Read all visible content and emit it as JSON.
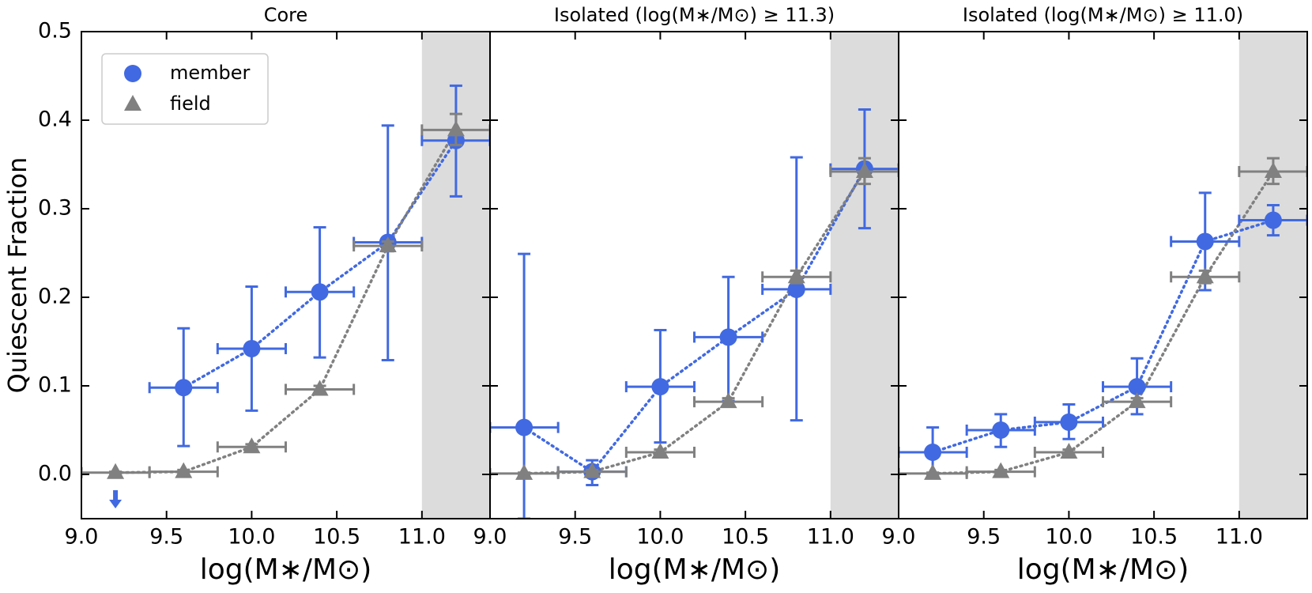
{
  "chart_data": [
    {
      "type": "errorbar",
      "title": "Core",
      "xlabel": "log(M∗/M⊙)",
      "ylabel": "Quiescent Fraction",
      "xlim": [
        9,
        11.4
      ],
      "ylim": [
        -0.05,
        0.5
      ],
      "xticks": [
        {
          "value": 9,
          "label": "9.0"
        },
        9.5,
        {
          "value": 10,
          "label": "10.0"
        },
        10.5,
        {
          "value": 11,
          "label": "11.0"
        }
      ],
      "yticks": [
        {
          "value": 0,
          "label": "0.0"
        },
        0.1,
        0.2,
        0.3,
        0.4,
        0.5
      ],
      "shade": [
        11.0,
        11.4
      ],
      "legend": "upper left",
      "series": [
        {
          "name": "member",
          "color": "#4169e1",
          "marker": "circle",
          "x": [
            9.6,
            10.0,
            10.4,
            10.8,
            11.2
          ],
          "values": [
            0.098,
            0.142,
            0.206,
            0.262,
            0.377
          ],
          "xerr": [
            0.2,
            0.2,
            0.2,
            0.2,
            0.2
          ],
          "ylow": [
            0.032,
            0.072,
            0.132,
            0.129,
            0.314
          ],
          "yhigh": [
            0.165,
            0.212,
            0.279,
            0.394,
            0.439
          ]
        },
        {
          "name": "field",
          "color": "#808080",
          "marker": "triangle",
          "x": [
            9.2,
            9.6,
            10.0,
            10.4,
            10.8,
            11.2
          ],
          "values": [
            0.002,
            0.003,
            0.031,
            0.096,
            0.258,
            0.389
          ],
          "xerr": [
            0.2,
            0.2,
            0.2,
            0.2,
            0.2,
            0.2
          ],
          "ylow": [
            0.001,
            0.002,
            0.028,
            0.092,
            0.252,
            0.372
          ],
          "yhigh": [
            0.003,
            0.005,
            0.034,
            0.1,
            0.263,
            0.407
          ]
        }
      ],
      "upper_limits": [
        {
          "x": 9.2,
          "y": -0.025,
          "color": "#4169e1"
        }
      ]
    },
    {
      "type": "errorbar",
      "title": "Isolated (log(M∗/M⊙) ≥ 11.3)",
      "xlabel": "log(M∗/M⊙)",
      "xlim": [
        9,
        11.4
      ],
      "ylim": [
        -0.05,
        0.5
      ],
      "xticks": [
        {
          "value": 9,
          "label": "9.0"
        },
        9.5,
        {
          "value": 10,
          "label": "10.0"
        },
        10.5,
        {
          "value": 11,
          "label": "11.0"
        }
      ],
      "yticks": [
        0,
        0.1,
        0.2,
        0.3,
        0.4,
        0.5
      ],
      "shade": [
        11.0,
        11.4
      ],
      "series": [
        {
          "name": "member",
          "color": "#4169e1",
          "marker": "circle",
          "x": [
            9.2,
            9.6,
            10.0,
            10.4,
            10.8,
            11.2
          ],
          "values": [
            0.053,
            0.003,
            0.099,
            0.155,
            0.209,
            0.345
          ],
          "xerr": [
            0.2,
            0.2,
            0.2,
            0.2,
            0.2,
            0.2
          ],
          "ylow": [
            -0.05,
            -0.012,
            0.036,
            0.083,
            0.061,
            0.278
          ],
          "yhigh": [
            0.249,
            0.016,
            0.163,
            0.223,
            0.358,
            0.412
          ]
        },
        {
          "name": "field",
          "color": "#808080",
          "marker": "triangle",
          "x": [
            9.2,
            9.6,
            10.0,
            10.4,
            10.8,
            11.2
          ],
          "values": [
            0.001,
            0.003,
            0.025,
            0.082,
            0.223,
            0.342
          ],
          "xerr": [
            0.2,
            0.2,
            0.2,
            0.2,
            0.2,
            0.2
          ],
          "ylow": [
            0.0,
            0.002,
            0.022,
            0.078,
            0.216,
            0.328
          ],
          "yhigh": [
            0.002,
            0.005,
            0.028,
            0.086,
            0.23,
            0.357
          ]
        }
      ]
    },
    {
      "type": "errorbar",
      "title": "Isolated (log(M∗/M⊙) ≥ 11.0)",
      "xlabel": "log(M∗/M⊙)",
      "xlim": [
        9,
        11.4
      ],
      "ylim": [
        -0.05,
        0.5
      ],
      "xticks": [
        {
          "value": 9,
          "label": "9.0"
        },
        9.5,
        {
          "value": 10,
          "label": "10.0"
        },
        10.5,
        {
          "value": 11,
          "label": "11.0"
        }
      ],
      "yticks": [
        0,
        0.1,
        0.2,
        0.3,
        0.4,
        0.5
      ],
      "shade": [
        11.0,
        11.4
      ],
      "series": [
        {
          "name": "member",
          "color": "#4169e1",
          "marker": "circle",
          "x": [
            9.2,
            9.6,
            10.0,
            10.4,
            10.8,
            11.2
          ],
          "values": [
            0.025,
            0.05,
            0.059,
            0.099,
            0.263,
            0.287
          ],
          "xerr": [
            0.2,
            0.2,
            0.2,
            0.2,
            0.2,
            0.2
          ],
          "ylow": [
            0.0,
            0.031,
            0.04,
            0.068,
            0.208,
            0.27
          ],
          "yhigh": [
            0.053,
            0.068,
            0.079,
            0.131,
            0.318,
            0.304
          ]
        },
        {
          "name": "field",
          "color": "#808080",
          "marker": "triangle",
          "x": [
            9.2,
            9.6,
            10.0,
            10.4,
            10.8,
            11.2
          ],
          "values": [
            0.001,
            0.003,
            0.025,
            0.082,
            0.223,
            0.342
          ],
          "xerr": [
            0.2,
            0.2,
            0.2,
            0.2,
            0.2,
            0.2
          ],
          "ylow": [
            0.0,
            0.002,
            0.022,
            0.078,
            0.216,
            0.328
          ],
          "yhigh": [
            0.002,
            0.005,
            0.028,
            0.086,
            0.23,
            0.357
          ]
        }
      ]
    }
  ]
}
